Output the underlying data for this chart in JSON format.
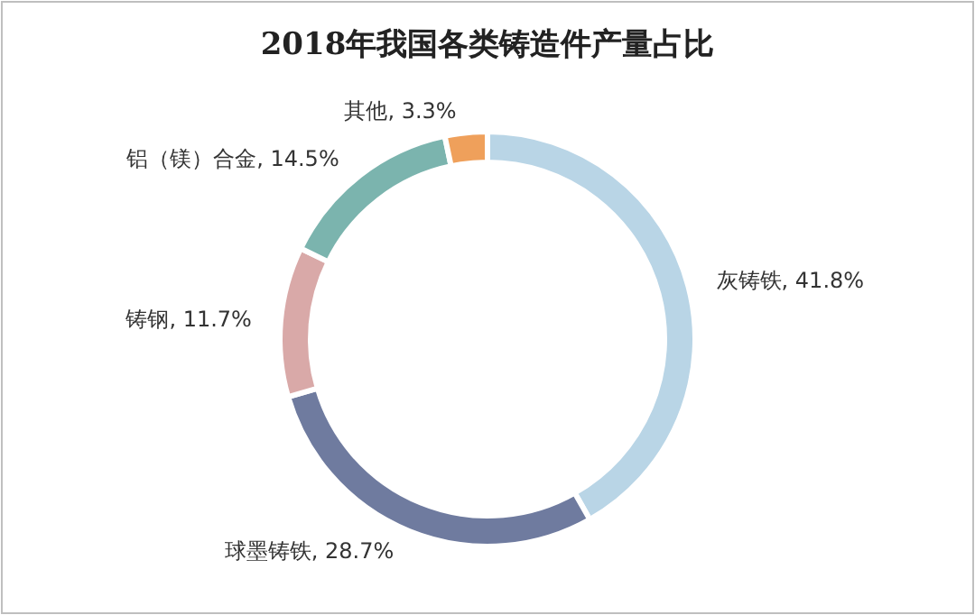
{
  "chart_data": {
    "type": "donut",
    "title": "2018年我国各类铸造件产量占比",
    "categories": [
      "灰铸铁",
      "球墨铸铁",
      "铸钢",
      "铝（镁）合金",
      "其他"
    ],
    "values": [
      41.8,
      28.7,
      11.7,
      14.5,
      3.3
    ],
    "value_labels": [
      "41.8%",
      "28.7%",
      "11.7%",
      "14.5%",
      "3.3%"
    ],
    "colors": [
      "#b9d5e6",
      "#6f7b9f",
      "#d9a9a8",
      "#7bb4ae",
      "#efa05b"
    ]
  }
}
